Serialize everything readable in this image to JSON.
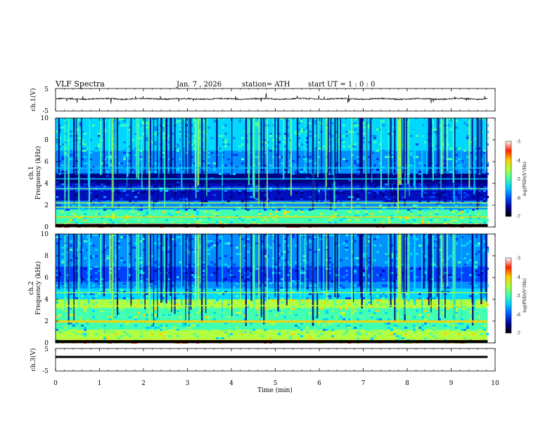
{
  "header": {
    "title": "VLF  Spectra",
    "date": "Jan.  7  , 2026",
    "station": "station= ATH",
    "start_ut": "start  UT  =   1  : 0   : 0"
  },
  "chart_data": [
    {
      "id": "ch1-waveform",
      "type": "line",
      "ylabel": "ch.1(V)",
      "ylim": [
        -5,
        5
      ],
      "yticks": [
        "5",
        "-5"
      ],
      "xlim": [
        0,
        10
      ],
      "baseline": 0.4,
      "note": "noisy waveform of ~0.3 V amplitude with sparse spikes up to ~2 V"
    },
    {
      "id": "ch1-spectrogram",
      "type": "heatmap",
      "ylabel": "ch.1\nFrequency  (kHz)",
      "ylabel_lines": [
        "ch.1",
        "Frequency  (kHz)"
      ],
      "ylim": [
        0,
        10
      ],
      "yticks": [
        "0",
        "2",
        "4",
        "6",
        "8",
        "10"
      ],
      "xlim": [
        0,
        10
      ],
      "data_end_min": 9.83,
      "color_range": [
        -7,
        -3
      ],
      "colorbar_label": "log(PSD)(V²/Hz)",
      "colorbar_ticks": [
        "-3",
        "-4",
        "-5",
        "-6",
        "-7"
      ],
      "bands": [
        {
          "from": 0,
          "to": 0.3,
          "level": 7.6
        },
        {
          "from": 0.3,
          "to": 1.6,
          "level": 5.3
        },
        {
          "from": 1.6,
          "to": 2.4,
          "level": 3.2
        },
        {
          "from": 2.4,
          "to": 3.0,
          "level": 1.4
        },
        {
          "from": 3.0,
          "to": 3.4,
          "level": 0.5
        },
        {
          "from": 3.4,
          "to": 3.7,
          "level": 2.4
        },
        {
          "from": 3.7,
          "to": 4.0,
          "level": 1.2
        },
        {
          "from": 4.0,
          "to": 4.9,
          "level": 0.3
        },
        {
          "from": 4.9,
          "to": 5.6,
          "level": 2.6
        },
        {
          "from": 5.6,
          "to": 7.0,
          "level": 3.2
        },
        {
          "from": 7.0,
          "to": 10.0,
          "level": 3.9
        }
      ],
      "lines": [
        {
          "f": 0.9,
          "level": 7.2
        },
        {
          "f": 1.8,
          "level": 6.0
        },
        {
          "f": 2.2,
          "level": 5.6
        },
        {
          "f": 3.5,
          "level": 4.6
        },
        {
          "f": 4.4,
          "level": 4.2
        },
        {
          "f": 5.4,
          "level": 4.2
        }
      ]
    },
    {
      "id": "ch2-spectrogram",
      "type": "heatmap",
      "ylabel": "ch.2\nFrequency  (kHz)",
      "ylabel_lines": [
        "ch.2",
        "Frequency  (kHz)"
      ],
      "ylim": [
        0,
        10
      ],
      "yticks": [
        "0",
        "2",
        "4",
        "6",
        "8",
        "10"
      ],
      "xlim": [
        0,
        10
      ],
      "data_end_min": 9.83,
      "color_range": [
        -7,
        -3
      ],
      "colorbar_label": "log(PSD)(V²/Hz)",
      "colorbar_ticks": [
        "-3",
        "-4",
        "-5",
        "-6",
        "-7"
      ],
      "bands": [
        {
          "from": 0,
          "to": 0.3,
          "level": 7.2
        },
        {
          "from": 0.3,
          "to": 1.2,
          "level": 5.6
        },
        {
          "from": 1.2,
          "to": 2.4,
          "level": 4.6
        },
        {
          "from": 2.4,
          "to": 3.2,
          "level": 5.2
        },
        {
          "from": 3.2,
          "to": 4.0,
          "level": 5.8
        },
        {
          "from": 4.0,
          "to": 5.0,
          "level": 3.6
        },
        {
          "from": 5.0,
          "to": 5.6,
          "level": 3.0
        },
        {
          "from": 5.6,
          "to": 7.0,
          "level": 2.4
        },
        {
          "from": 7.0,
          "to": 10.0,
          "level": 3.2
        }
      ],
      "lines": [
        {
          "f": 1.9,
          "level": 7.0
        },
        {
          "f": 2.0,
          "level": 6.6
        },
        {
          "f": 3.4,
          "level": 6.4
        },
        {
          "f": 4.6,
          "level": 5.6
        },
        {
          "f": 1.0,
          "level": 6.2
        }
      ]
    },
    {
      "id": "ch3-waveform",
      "type": "line",
      "ylabel": "ch.3(V)",
      "ylim": [
        -5,
        5
      ],
      "yticks": [
        "5",
        "-5"
      ],
      "xlim": [
        0,
        10
      ],
      "baseline": 0,
      "note": "flat thick trace near 0 V"
    }
  ],
  "xaxis": {
    "label": "Time  (min)",
    "ticks": [
      "0",
      "1",
      "2",
      "3",
      "4",
      "5",
      "6",
      "7",
      "8",
      "9",
      "10"
    ],
    "range": [
      0,
      10
    ]
  }
}
